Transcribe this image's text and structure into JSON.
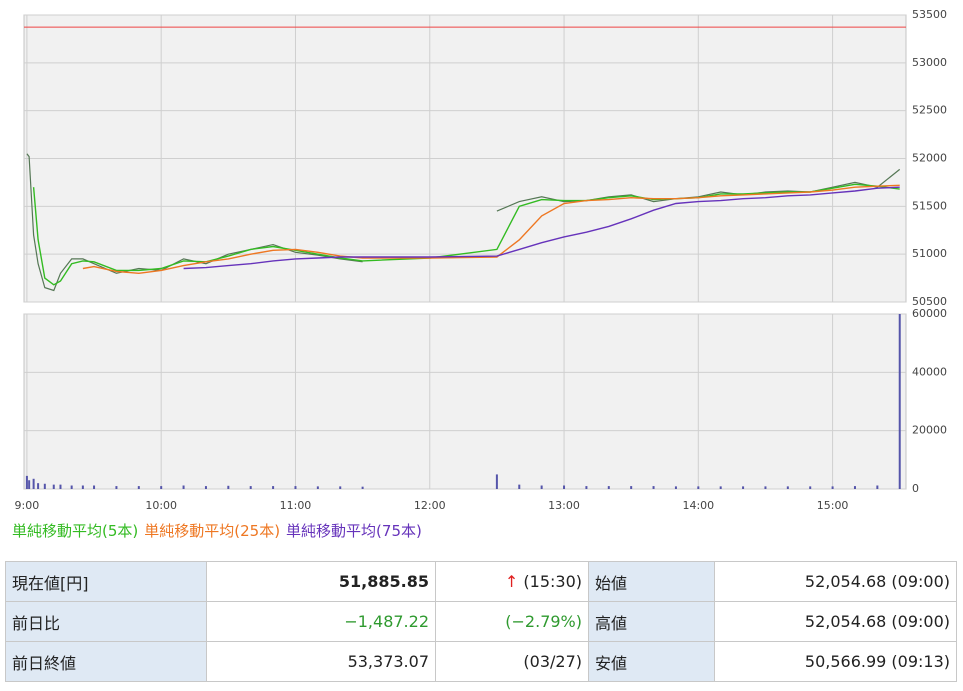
{
  "chart_data": [
    {
      "type": "line",
      "x": [
        0,
        1,
        3,
        5,
        8,
        12,
        15,
        20,
        25,
        30,
        40,
        50,
        60,
        70,
        80,
        90,
        100,
        110,
        120,
        130,
        140,
        150,
        180,
        210,
        220,
        230,
        240,
        250,
        260,
        270,
        280,
        290,
        300,
        310,
        320,
        330,
        340,
        350,
        360,
        370,
        380,
        390
      ],
      "xlim": [
        -1.3,
        392.8
      ],
      "ylim": [
        50500,
        53500
      ],
      "yticks": [
        50500,
        51000,
        51500,
        52000,
        52500,
        53000,
        53500
      ],
      "grid": true,
      "ref_line": {
        "value": 53373.07,
        "color": "#ee4444"
      },
      "price": {
        "color": "#557755",
        "values": [
          52050,
          52020,
          51200,
          50900,
          50650,
          50620,
          50800,
          50950,
          50950,
          50900,
          50800,
          50850,
          50830,
          50950,
          50900,
          51000,
          51050,
          51100,
          51020,
          50990,
          50950,
          50920,
          null,
          51450,
          51550,
          51600,
          51550,
          51560,
          51600,
          51620,
          51550,
          51580,
          51600,
          51650,
          51620,
          51650,
          51660,
          51650,
          51700,
          51750,
          51700,
          51885.85
        ]
      },
      "series": [
        {
          "name": "単純移動平均(5本)",
          "color": "#33bb22",
          "values": [
            null,
            null,
            51700,
            51150,
            50750,
            50680,
            50720,
            50900,
            50930,
            50920,
            50830,
            50830,
            50850,
            50930,
            50920,
            50980,
            51050,
            51080,
            51040,
            51000,
            50960,
            50930,
            50960,
            51050,
            51500,
            51570,
            51560,
            51560,
            51590,
            51610,
            51570,
            51580,
            51590,
            51630,
            51630,
            51640,
            51650,
            51650,
            51690,
            51730,
            51710,
            51680
          ]
        },
        {
          "name": "単純移動平均(25本)",
          "color": "#ee7722",
          "values": [
            null,
            null,
            null,
            null,
            null,
            null,
            null,
            null,
            50850,
            50870,
            50820,
            50800,
            50830,
            50880,
            50920,
            50950,
            51000,
            51040,
            51050,
            51020,
            50980,
            50960,
            50960,
            50970,
            51150,
            51400,
            51530,
            51560,
            51570,
            51590,
            51580,
            51580,
            51590,
            51610,
            51620,
            51630,
            51640,
            51650,
            51670,
            51700,
            51710,
            51720
          ]
        },
        {
          "name": "単純移動平均(75本)",
          "color": "#6633bb",
          "values": [
            null,
            null,
            null,
            null,
            null,
            null,
            null,
            null,
            null,
            null,
            null,
            null,
            null,
            50850,
            50860,
            50880,
            50900,
            50930,
            50950,
            50960,
            50970,
            50970,
            50970,
            50980,
            51050,
            51120,
            51180,
            51230,
            51290,
            51370,
            51460,
            51530,
            51550,
            51560,
            51580,
            51590,
            51610,
            51620,
            51640,
            51660,
            51690,
            51700
          ]
        }
      ]
    },
    {
      "type": "bar",
      "x": [
        0,
        1,
        3,
        5,
        8,
        12,
        15,
        20,
        25,
        30,
        40,
        50,
        60,
        70,
        80,
        90,
        100,
        110,
        120,
        130,
        140,
        150,
        180,
        210,
        220,
        230,
        240,
        250,
        260,
        270,
        280,
        290,
        300,
        310,
        320,
        330,
        340,
        350,
        360,
        370,
        380,
        390
      ],
      "xlim": [
        -1.3,
        392.8
      ],
      "values": [
        4500,
        3000,
        3500,
        2000,
        1800,
        1500,
        1500,
        1200,
        1200,
        1200,
        1000,
        1000,
        1000,
        1200,
        1000,
        1100,
        1000,
        1000,
        1000,
        900,
        900,
        800,
        null,
        5000,
        1500,
        1200,
        1200,
        1000,
        1000,
        1000,
        1000,
        900,
        900,
        900,
        900,
        900,
        900,
        900,
        900,
        1000,
        1200,
        60000
      ],
      "color": "#5555aa",
      "ylim": [
        0,
        60000
      ],
      "yticks": [
        0,
        20000,
        40000,
        60000
      ],
      "xticks": [
        {
          "value": 0,
          "label": "9:00"
        },
        {
          "value": 60,
          "label": "10:00"
        },
        {
          "value": 120,
          "label": "11:00"
        },
        {
          "value": 180,
          "label": "12:00"
        },
        {
          "value": 240,
          "label": "13:00"
        },
        {
          "value": 300,
          "label": "14:00"
        },
        {
          "value": 360,
          "label": "15:00"
        }
      ],
      "grid": true
    }
  ],
  "table": {
    "rows": [
      {
        "label": "現在値[円]",
        "value": "51,885.85",
        "arrow": "↑",
        "extra": "(15:30)",
        "label2": "始値",
        "value2": "52,054.68 (09:00)"
      },
      {
        "label": "前日比",
        "value": "−1,487.22",
        "extra": "(−2.79%)",
        "label2": "高値",
        "value2": "52,054.68 (09:00)"
      },
      {
        "label": "前日終値",
        "value": "53,373.07",
        "extra": "(03/27)",
        "label2": "安値",
        "value2": "50,566.99 (09:13)"
      }
    ]
  }
}
